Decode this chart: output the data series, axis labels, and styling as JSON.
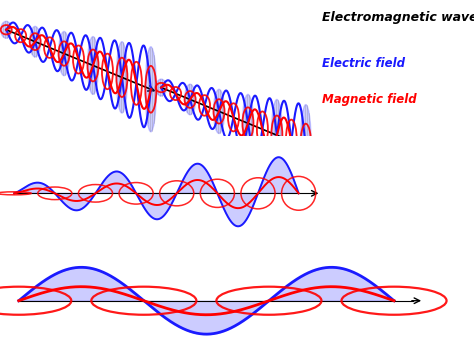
{
  "title": "Electromagnetic wave",
  "title_color": "black",
  "electric_label": "Electric field",
  "electric_color": "#1a1aff",
  "magnetic_label": "Magnetic field",
  "magnetic_color": "#ff0000",
  "bg_color": "#ffffff"
}
